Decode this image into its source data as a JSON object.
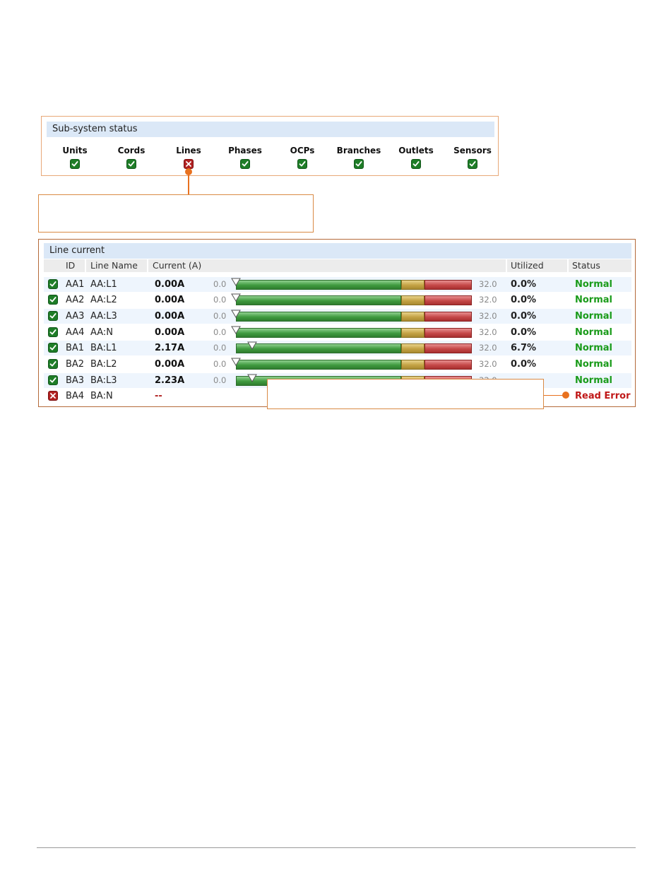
{
  "subsystem": {
    "title": "Sub-system status",
    "items": [
      {
        "label": "Units",
        "status": "ok"
      },
      {
        "label": "Cords",
        "status": "ok"
      },
      {
        "label": "Lines",
        "status": "error"
      },
      {
        "label": "Phases",
        "status": "ok"
      },
      {
        "label": "OCPs",
        "status": "ok"
      },
      {
        "label": "Branches",
        "status": "ok"
      },
      {
        "label": "Outlets",
        "status": "ok"
      },
      {
        "label": "Sensors",
        "status": "ok"
      }
    ]
  },
  "line_current": {
    "title": "Line current",
    "columns": {
      "id": "ID",
      "name": "Line Name",
      "current": "Current (A)",
      "utilized": "Utilized",
      "status": "Status"
    },
    "scale_min": "0.0",
    "scale_max": "32.0",
    "scale_max_value": 32,
    "warn_threshold": 22.4,
    "crit_threshold": 25.6,
    "rows": [
      {
        "state": "ok",
        "id": "AA1",
        "name": "AA:L1",
        "current": "0.00A",
        "value": 0.0,
        "utilized": "0.0%",
        "status": "Normal"
      },
      {
        "state": "ok",
        "id": "AA2",
        "name": "AA:L2",
        "current": "0.00A",
        "value": 0.0,
        "utilized": "0.0%",
        "status": "Normal"
      },
      {
        "state": "ok",
        "id": "AA3",
        "name": "AA:L3",
        "current": "0.00A",
        "value": 0.0,
        "utilized": "0.0%",
        "status": "Normal"
      },
      {
        "state": "ok",
        "id": "AA4",
        "name": "AA:N",
        "current": "0.00A",
        "value": 0.0,
        "utilized": "0.0%",
        "status": "Normal"
      },
      {
        "state": "ok",
        "id": "BA1",
        "name": "BA:L1",
        "current": "2.17A",
        "value": 2.17,
        "utilized": "6.7%",
        "status": "Normal"
      },
      {
        "state": "ok",
        "id": "BA2",
        "name": "BA:L2",
        "current": "0.00A",
        "value": 0.0,
        "utilized": "0.0%",
        "status": "Normal"
      },
      {
        "state": "ok",
        "id": "BA3",
        "name": "BA:L3",
        "current": "2.23A",
        "value": 2.23,
        "utilized": "",
        "status": "Normal"
      },
      {
        "state": "error",
        "id": "BA4",
        "name": "BA:N",
        "current": "--",
        "value": null,
        "utilized": "",
        "status": "Read Error"
      }
    ]
  },
  "colors": {
    "ok": "#1e7d27",
    "error": "#b22222",
    "callout": "#e8711f",
    "header_bg": "#dbe8f7"
  }
}
